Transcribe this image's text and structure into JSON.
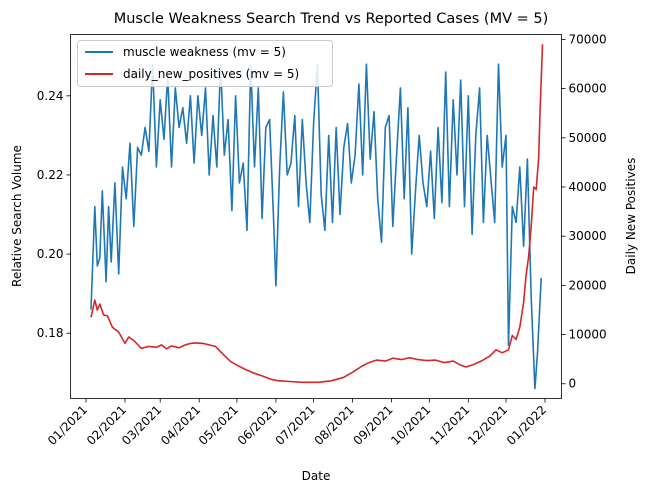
{
  "chart_data": {
    "type": "line",
    "title": "Muscle Weakness Search Trend vs Reported Cases (MV = 5)",
    "xlabel": "Date",
    "ylabel_left": "Relative Search Volume",
    "ylabel_right": "Daily New Positives",
    "x_range": [
      "2021-01-01",
      "2022-01-01"
    ],
    "x_ticks": [
      "01/2021",
      "02/2021",
      "03/2021",
      "04/2021",
      "05/2021",
      "06/2021",
      "07/2021",
      "08/2021",
      "09/2021",
      "10/2021",
      "11/2021",
      "12/2021",
      "01/2022"
    ],
    "ylim_left": [
      0.1635,
      0.2555
    ],
    "yticks_left": [
      "0.18",
      "0.20",
      "0.22",
      "0.24"
    ],
    "ylim_right": [
      -3000,
      71000
    ],
    "yticks_right": [
      "0",
      "10000",
      "20000",
      "30000",
      "40000",
      "50000",
      "60000",
      "70000"
    ],
    "grid": false,
    "legend_position": "top-left",
    "series": [
      {
        "name": "muscle weakness (mv = 5)",
        "axis": "left",
        "color": "#1f77b4",
        "points": [
          [
            "2021-01-05",
            0.186
          ],
          [
            "2021-01-08",
            0.212
          ],
          [
            "2021-01-10",
            0.197
          ],
          [
            "2021-01-12",
            0.199
          ],
          [
            "2021-01-14",
            0.216
          ],
          [
            "2021-01-17",
            0.193
          ],
          [
            "2021-01-19",
            0.212
          ],
          [
            "2021-01-21",
            0.198
          ],
          [
            "2021-01-24",
            0.218
          ],
          [
            "2021-01-27",
            0.195
          ],
          [
            "2021-01-30",
            0.222
          ],
          [
            "2021-02-02",
            0.214
          ],
          [
            "2021-02-05",
            0.228
          ],
          [
            "2021-02-08",
            0.207
          ],
          [
            "2021-02-11",
            0.227
          ],
          [
            "2021-02-14",
            0.225
          ],
          [
            "2021-02-17",
            0.232
          ],
          [
            "2021-02-20",
            0.226
          ],
          [
            "2021-02-23",
            0.248
          ],
          [
            "2021-02-26",
            0.222
          ],
          [
            "2021-03-01",
            0.239
          ],
          [
            "2021-03-04",
            0.229
          ],
          [
            "2021-03-07",
            0.245
          ],
          [
            "2021-03-10",
            0.222
          ],
          [
            "2021-03-13",
            0.242
          ],
          [
            "2021-03-16",
            0.232
          ],
          [
            "2021-03-19",
            0.237
          ],
          [
            "2021-03-22",
            0.228
          ],
          [
            "2021-03-25",
            0.24
          ],
          [
            "2021-03-28",
            0.223
          ],
          [
            "2021-03-31",
            0.24
          ],
          [
            "2021-04-03",
            0.23
          ],
          [
            "2021-04-06",
            0.242
          ],
          [
            "2021-04-09",
            0.22
          ],
          [
            "2021-04-12",
            0.235
          ],
          [
            "2021-04-15",
            0.222
          ],
          [
            "2021-04-18",
            0.248
          ],
          [
            "2021-04-21",
            0.225
          ],
          [
            "2021-04-24",
            0.234
          ],
          [
            "2021-04-27",
            0.211
          ],
          [
            "2021-04-30",
            0.24
          ],
          [
            "2021-05-03",
            0.218
          ],
          [
            "2021-05-06",
            0.223
          ],
          [
            "2021-05-09",
            0.206
          ],
          [
            "2021-05-12",
            0.248
          ],
          [
            "2021-05-15",
            0.222
          ],
          [
            "2021-05-18",
            0.242
          ],
          [
            "2021-05-21",
            0.209
          ],
          [
            "2021-05-24",
            0.232
          ],
          [
            "2021-05-27",
            0.234
          ],
          [
            "2021-05-30",
            0.21
          ],
          [
            "2021-06-01",
            0.192
          ],
          [
            "2021-06-04",
            0.222
          ],
          [
            "2021-06-07",
            0.241
          ],
          [
            "2021-06-10",
            0.22
          ],
          [
            "2021-06-13",
            0.223
          ],
          [
            "2021-06-16",
            0.235
          ],
          [
            "2021-06-19",
            0.212
          ],
          [
            "2021-06-22",
            0.234
          ],
          [
            "2021-06-25",
            0.218
          ],
          [
            "2021-06-28",
            0.208
          ],
          [
            "2021-07-01",
            0.233
          ],
          [
            "2021-07-04",
            0.248
          ],
          [
            "2021-07-07",
            0.215
          ],
          [
            "2021-07-10",
            0.206
          ],
          [
            "2021-07-13",
            0.23
          ],
          [
            "2021-07-16",
            0.208
          ],
          [
            "2021-07-19",
            0.232
          ],
          [
            "2021-07-22",
            0.21
          ],
          [
            "2021-07-25",
            0.227
          ],
          [
            "2021-07-28",
            0.233
          ],
          [
            "2021-07-31",
            0.218
          ],
          [
            "2021-08-03",
            0.225
          ],
          [
            "2021-08-06",
            0.243
          ],
          [
            "2021-08-09",
            0.22
          ],
          [
            "2021-08-12",
            0.248
          ],
          [
            "2021-08-15",
            0.224
          ],
          [
            "2021-08-18",
            0.236
          ],
          [
            "2021-08-21",
            0.214
          ],
          [
            "2021-08-24",
            0.203
          ],
          [
            "2021-08-27",
            0.232
          ],
          [
            "2021-08-30",
            0.235
          ],
          [
            "2021-09-02",
            0.207
          ],
          [
            "2021-09-05",
            0.225
          ],
          [
            "2021-09-08",
            0.242
          ],
          [
            "2021-09-11",
            0.214
          ],
          [
            "2021-09-14",
            0.237
          ],
          [
            "2021-09-17",
            0.2
          ],
          [
            "2021-09-20",
            0.216
          ],
          [
            "2021-09-23",
            0.23
          ],
          [
            "2021-09-26",
            0.218
          ],
          [
            "2021-09-29",
            0.212
          ],
          [
            "2021-10-02",
            0.226
          ],
          [
            "2021-10-05",
            0.209
          ],
          [
            "2021-10-08",
            0.232
          ],
          [
            "2021-10-11",
            0.213
          ],
          [
            "2021-10-14",
            0.246
          ],
          [
            "2021-10-17",
            0.212
          ],
          [
            "2021-10-20",
            0.239
          ],
          [
            "2021-10-23",
            0.22
          ],
          [
            "2021-10-26",
            0.244
          ],
          [
            "2021-10-29",
            0.212
          ],
          [
            "2021-11-01",
            0.24
          ],
          [
            "2021-11-04",
            0.205
          ],
          [
            "2021-11-07",
            0.23
          ],
          [
            "2021-11-10",
            0.242
          ],
          [
            "2021-11-13",
            0.208
          ],
          [
            "2021-11-16",
            0.23
          ],
          [
            "2021-11-19",
            0.219
          ],
          [
            "2021-11-22",
            0.208
          ],
          [
            "2021-11-25",
            0.248
          ],
          [
            "2021-11-28",
            0.222
          ],
          [
            "2021-12-01",
            0.23
          ],
          [
            "2021-12-03",
            0.177
          ],
          [
            "2021-12-06",
            0.212
          ],
          [
            "2021-12-09",
            0.208
          ],
          [
            "2021-12-12",
            0.222
          ],
          [
            "2021-12-15",
            0.202
          ],
          [
            "2021-12-18",
            0.224
          ],
          [
            "2021-12-21",
            0.189
          ],
          [
            "2021-12-24",
            0.166
          ],
          [
            "2021-12-26",
            0.175
          ],
          [
            "2021-12-29",
            0.194
          ]
        ]
      },
      {
        "name": "daily_new_positives (mv = 5)",
        "axis": "right",
        "color": "#d62728",
        "points": [
          [
            "2021-01-05",
            13500
          ],
          [
            "2021-01-08",
            17000
          ],
          [
            "2021-01-10",
            15000
          ],
          [
            "2021-01-12",
            16200
          ],
          [
            "2021-01-15",
            14000
          ],
          [
            "2021-01-18",
            13800
          ],
          [
            "2021-01-22",
            11500
          ],
          [
            "2021-01-27",
            10500
          ],
          [
            "2021-02-01",
            8200
          ],
          [
            "2021-02-04",
            9500
          ],
          [
            "2021-02-08",
            8800
          ],
          [
            "2021-02-14",
            7200
          ],
          [
            "2021-02-20",
            7600
          ],
          [
            "2021-02-26",
            7400
          ],
          [
            "2021-03-02",
            7900
          ],
          [
            "2021-03-06",
            7100
          ],
          [
            "2021-03-10",
            7700
          ],
          [
            "2021-03-16",
            7300
          ],
          [
            "2021-03-20",
            7800
          ],
          [
            "2021-03-25",
            8200
          ],
          [
            "2021-03-30",
            8300
          ],
          [
            "2021-04-04",
            8200
          ],
          [
            "2021-04-09",
            7900
          ],
          [
            "2021-04-14",
            7600
          ],
          [
            "2021-04-18",
            6500
          ],
          [
            "2021-04-22",
            5500
          ],
          [
            "2021-04-26",
            4500
          ],
          [
            "2021-05-01",
            3800
          ],
          [
            "2021-05-07",
            3000
          ],
          [
            "2021-05-14",
            2200
          ],
          [
            "2021-05-21",
            1600
          ],
          [
            "2021-05-28",
            900
          ],
          [
            "2021-06-03",
            600
          ],
          [
            "2021-06-12",
            450
          ],
          [
            "2021-06-22",
            300
          ],
          [
            "2021-07-05",
            300
          ],
          [
            "2021-07-15",
            600
          ],
          [
            "2021-07-25",
            1300
          ],
          [
            "2021-08-02",
            2500
          ],
          [
            "2021-08-08",
            3500
          ],
          [
            "2021-08-14",
            4300
          ],
          [
            "2021-08-20",
            4800
          ],
          [
            "2021-08-27",
            4600
          ],
          [
            "2021-09-02",
            5200
          ],
          [
            "2021-09-09",
            4900
          ],
          [
            "2021-09-15",
            5300
          ],
          [
            "2021-09-22",
            4900
          ],
          [
            "2021-09-29",
            4700
          ],
          [
            "2021-10-06",
            4800
          ],
          [
            "2021-10-13",
            4300
          ],
          [
            "2021-10-20",
            4600
          ],
          [
            "2021-10-25",
            3900
          ],
          [
            "2021-10-30",
            3400
          ],
          [
            "2021-11-05",
            3900
          ],
          [
            "2021-11-12",
            4700
          ],
          [
            "2021-11-18",
            5600
          ],
          [
            "2021-11-23",
            6900
          ],
          [
            "2021-11-28",
            6300
          ],
          [
            "2021-12-03",
            6900
          ],
          [
            "2021-12-06",
            9800
          ],
          [
            "2021-12-09",
            9000
          ],
          [
            "2021-12-12",
            11500
          ],
          [
            "2021-12-15",
            16500
          ],
          [
            "2021-12-17",
            22000
          ],
          [
            "2021-12-19",
            26000
          ],
          [
            "2021-12-21",
            32000
          ],
          [
            "2021-12-23",
            40000
          ],
          [
            "2021-12-25",
            39500
          ],
          [
            "2021-12-27",
            46000
          ],
          [
            "2021-12-28",
            55000
          ],
          [
            "2021-12-30",
            69000
          ]
        ]
      }
    ]
  }
}
